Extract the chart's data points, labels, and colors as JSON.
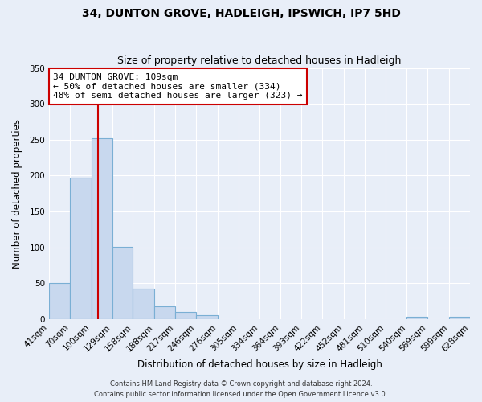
{
  "title": "34, DUNTON GROVE, HADLEIGH, IPSWICH, IP7 5HD",
  "subtitle": "Size of property relative to detached houses in Hadleigh",
  "xlabel": "Distribution of detached houses by size in Hadleigh",
  "ylabel": "Number of detached properties",
  "bin_edges": [
    41,
    70,
    100,
    129,
    158,
    188,
    217,
    246,
    276,
    305,
    334,
    364,
    393,
    422,
    452,
    481,
    510,
    540,
    569,
    599,
    628
  ],
  "bin_counts": [
    50,
    197,
    252,
    101,
    42,
    18,
    10,
    5,
    0,
    0,
    0,
    0,
    0,
    0,
    0,
    0,
    0,
    3,
    0,
    3
  ],
  "bar_color": "#c8d8ee",
  "bar_edge_color": "#7aafd4",
  "vline_x": 109,
  "vline_color": "#cc0000",
  "ylim": [
    0,
    350
  ],
  "yticks": [
    0,
    50,
    100,
    150,
    200,
    250,
    300,
    350
  ],
  "annotation_title": "34 DUNTON GROVE: 109sqm",
  "annotation_line1": "← 50% of detached houses are smaller (334)",
  "annotation_line2": "48% of semi-detached houses are larger (323) →",
  "annotation_box_color": "#ffffff",
  "annotation_box_edge": "#cc0000",
  "footnote1": "Contains HM Land Registry data © Crown copyright and database right 2024.",
  "footnote2": "Contains public sector information licensed under the Open Government Licence v3.0.",
  "bg_color": "#e8eef8",
  "plot_bg_color": "#e8eef8",
  "grid_color": "#ffffff",
  "title_fontsize": 10,
  "subtitle_fontsize": 9,
  "axis_label_fontsize": 8.5,
  "tick_fontsize": 7.5,
  "footnote_fontsize": 6,
  "ann_fontsize": 8
}
